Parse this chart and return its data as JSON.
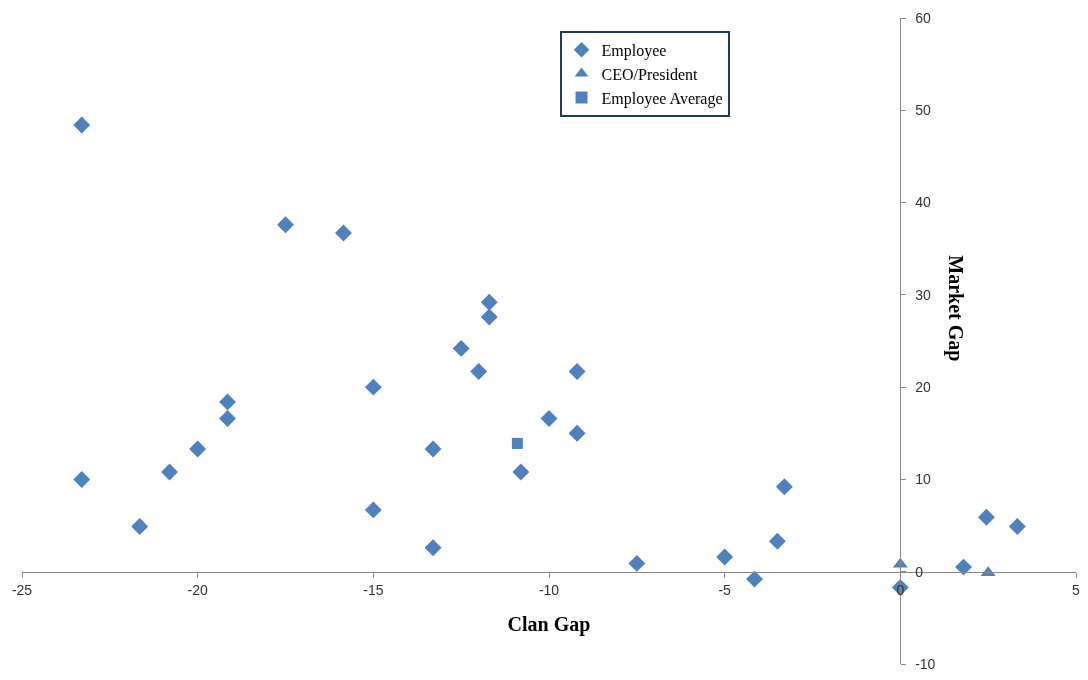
{
  "chart_data": {
    "type": "scatter",
    "xlabel": "Clan Gap",
    "ylabel": "Market Gap",
    "xlim": [
      -25,
      5
    ],
    "xticks": [
      -25,
      -20,
      -15,
      -10,
      -5,
      0,
      5
    ],
    "ylim": [
      -10,
      60
    ],
    "yticks": [
      -10,
      0,
      10,
      20,
      30,
      40,
      50,
      60
    ],
    "legend": "top",
    "series": [
      {
        "name": "Employee",
        "color": "#4f81bd",
        "marker": "diamond",
        "x": [
          -23.3,
          -23.3,
          -21.65,
          -20.8,
          -20.0,
          -19.15,
          -19.15,
          -17.5,
          -15.85,
          -15.0,
          -15.0,
          -13.3,
          -13.3,
          -12.5,
          -12.0,
          -11.7,
          -11.7,
          -10.8,
          -10.0,
          -9.2,
          -9.2,
          -7.5,
          -5.0,
          -4.15,
          -3.5,
          -3.3,
          0,
          1.8,
          2.45,
          3.33
        ],
        "values": [
          48.4,
          10.0,
          4.9,
          10.8,
          13.3,
          18.4,
          16.6,
          37.6,
          36.7,
          20.0,
          6.7,
          13.3,
          2.6,
          24.2,
          21.7,
          29.2,
          27.6,
          10.8,
          16.6,
          21.7,
          15.0,
          0.9,
          1.6,
          -0.8,
          3.3,
          9.2,
          -1.7,
          0.5,
          5.9,
          4.9
        ]
      },
      {
        "name": "CEO/President",
        "color": "#4f81bd",
        "marker": "triangle",
        "x": [
          0,
          2.5
        ],
        "values": [
          0.8,
          -0.1
        ]
      },
      {
        "name": "Employee Average",
        "color": "#4f81bd",
        "marker": "square",
        "x": [
          -10.9
        ],
        "values": [
          13.9
        ]
      }
    ]
  }
}
